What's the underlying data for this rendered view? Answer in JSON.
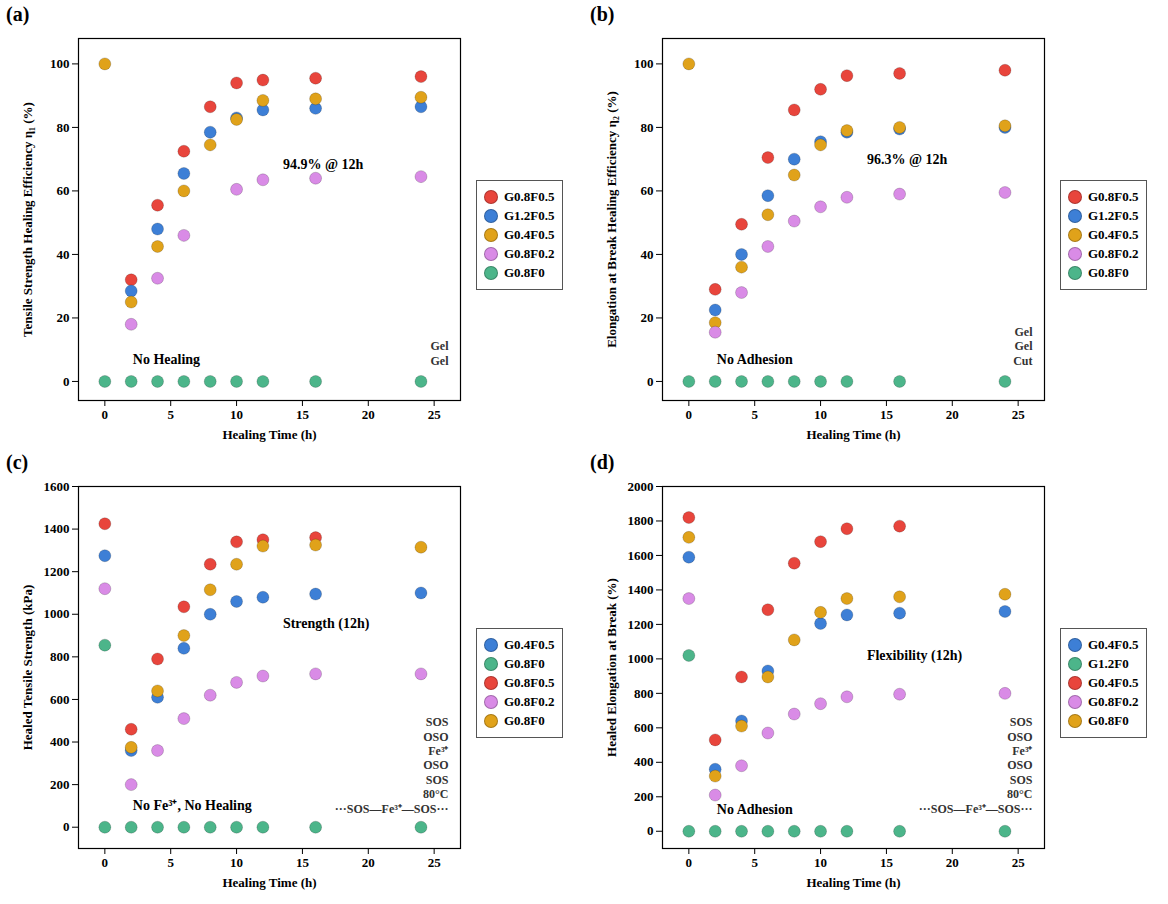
{
  "chart_data": [
    {
      "type": "scatter",
      "panel": "(a)",
      "x_label": "Healing Time (h)",
      "y_label": "Tensile Strength Healing Efficiency η₁ (%)",
      "x": [
        0,
        2,
        4,
        6,
        8,
        10,
        12,
        16,
        24
      ],
      "xlim": [
        -2,
        27
      ],
      "xticks": [
        0,
        5,
        10,
        15,
        20,
        25
      ],
      "ylim": [
        -6,
        108
      ],
      "yticks": [
        0,
        20,
        40,
        60,
        80,
        100
      ],
      "legend": "right",
      "series": [
        {
          "name": "G0.8F0.5",
          "color": "#e8453c",
          "values": [
            null,
            32,
            55.5,
            72.5,
            86.5,
            94,
            94.9,
            95.5,
            96
          ]
        },
        {
          "name": "G1.2F0.5",
          "color": "#3d7fd6",
          "values": [
            null,
            28.5,
            48,
            65.5,
            78.5,
            83,
            85.5,
            86,
            86.5
          ]
        },
        {
          "name": "G0.4F0.5",
          "color": "#e0a21a",
          "values": [
            100,
            25,
            42.5,
            60,
            74.5,
            82.5,
            88.5,
            89,
            89.5
          ]
        },
        {
          "name": "G0.8F0.2",
          "color": "#d98be6",
          "values": [
            null,
            18,
            32.5,
            46,
            null,
            60.5,
            63.5,
            64,
            64.5
          ]
        },
        {
          "name": "G0.8F0",
          "color": "#4cb58a",
          "values": [
            0,
            0,
            0,
            0,
            0,
            0,
            0,
            0,
            0
          ]
        }
      ],
      "annotations": [
        {
          "text": "94.9% @ 12h",
          "x": 12,
          "y": 94.9
        },
        {
          "text": "No Healing",
          "x": 0,
          "y": 0
        }
      ],
      "inset_texts": [
        "Gel",
        "Gel"
      ]
    },
    {
      "type": "scatter",
      "panel": "(b)",
      "x_label": "Healing Time (h)",
      "y_label": "Elongation at Break Healing Efficiency η₂ (%)",
      "x": [
        0,
        2,
        4,
        6,
        8,
        10,
        12,
        16,
        24
      ],
      "xlim": [
        -2,
        27
      ],
      "xticks": [
        0,
        5,
        10,
        15,
        20,
        25
      ],
      "ylim": [
        -6,
        108
      ],
      "yticks": [
        0,
        20,
        40,
        60,
        80,
        100
      ],
      "legend": "right",
      "series": [
        {
          "name": "G0.8F0.5",
          "color": "#e8453c",
          "values": [
            null,
            29,
            49.5,
            70.5,
            85.5,
            92,
            96.3,
            97,
            98
          ]
        },
        {
          "name": "G1.2F0.5",
          "color": "#3d7fd6",
          "values": [
            null,
            22.5,
            40,
            58.5,
            70,
            75.5,
            78.5,
            79.5,
            80
          ]
        },
        {
          "name": "G0.4F0.5",
          "color": "#e0a21a",
          "values": [
            100,
            18.5,
            36,
            52.5,
            65,
            74.5,
            79,
            80,
            80.5
          ]
        },
        {
          "name": "G0.8F0.2",
          "color": "#d98be6",
          "values": [
            null,
            15.5,
            28,
            42.5,
            50.5,
            55,
            58,
            59,
            59.5
          ]
        },
        {
          "name": "G0.8F0",
          "color": "#4cb58a",
          "values": [
            0,
            0,
            0,
            0,
            0,
            0,
            0,
            0,
            0
          ]
        }
      ],
      "annotations": [
        {
          "text": "96.3% @ 12h",
          "x": 12,
          "y": 96.3
        },
        {
          "text": "No Adhesion",
          "x": 0,
          "y": 0
        }
      ],
      "inset_texts": [
        "Gel",
        "Gel",
        "Cut"
      ]
    },
    {
      "type": "scatter",
      "panel": "(c)",
      "x_label": "Healing Time (h)",
      "y_label": "Healed Tensile Strength (kPa)",
      "x": [
        0,
        2,
        4,
        6,
        8,
        10,
        12,
        16,
        24
      ],
      "xlim": [
        -2,
        27
      ],
      "xticks": [
        0,
        5,
        10,
        15,
        20,
        25
      ],
      "ylim": [
        -100,
        1600
      ],
      "yticks": [
        0,
        200,
        400,
        600,
        800,
        1000,
        1200,
        1400,
        1600
      ],
      "legend": "right",
      "series": [
        {
          "name": "G0.4F0.5",
          "color": "#3d7fd6",
          "values": [
            1275,
            360,
            610,
            840,
            1000,
            1060,
            1080,
            1095,
            1100
          ]
        },
        {
          "name": "G0.8F0",
          "color": "#4cb58a",
          "x": [
            0,
            0,
            2,
            4,
            6,
            8,
            10,
            12,
            16,
            24
          ],
          "values": [
            855,
            0,
            0,
            0,
            0,
            0,
            0,
            0,
            0,
            0
          ]
        },
        {
          "name": "G0.8F0.5",
          "color": "#e8453c",
          "values": [
            1425,
            460,
            790,
            1035,
            1235,
            1340,
            1350,
            1360,
            null
          ]
        },
        {
          "name": "G0.8F0.2",
          "color": "#d98be6",
          "values": [
            1120,
            200,
            360,
            510,
            620,
            680,
            710,
            720,
            720
          ]
        },
        {
          "name": "G0.8F0",
          "color": "#e0a21a",
          "values": [
            null,
            375,
            640,
            900,
            1115,
            1235,
            1320,
            1325,
            1315
          ]
        }
      ],
      "annotations": [
        {
          "text": "Strength (12h)",
          "x": 12,
          "y": 1350
        },
        {
          "text": "No Fe³⁺, No Healing",
          "x": 0,
          "y": 0
        }
      ],
      "inset_texts": [
        "SOS",
        "OSO",
        "Fe³⁺",
        "OSO",
        "SOS",
        "80°C",
        "···SOS—Fe³⁺—SOS···"
      ]
    },
    {
      "type": "scatter",
      "panel": "(d)",
      "x_label": "Healing Time (h)",
      "y_label": "Healed Elongation at Break (%)",
      "x": [
        0,
        2,
        4,
        6,
        8,
        10,
        12,
        16,
        24
      ],
      "xlim": [
        -2,
        27
      ],
      "xticks": [
        0,
        5,
        10,
        15,
        20,
        25
      ],
      "ylim": [
        -100,
        2000
      ],
      "yticks": [
        0,
        200,
        400,
        600,
        800,
        1000,
        1200,
        1400,
        1600,
        1800,
        2000
      ],
      "legend": "right",
      "series": [
        {
          "name": "G0.4F0.5",
          "color": "#3d7fd6",
          "values": [
            1590,
            360,
            640,
            930,
            null,
            1205,
            1255,
            1265,
            1275
          ]
        },
        {
          "name": "G1.2F0",
          "color": "#4cb58a",
          "x": [
            0,
            0,
            2,
            4,
            6,
            8,
            10,
            12,
            16,
            24
          ],
          "values": [
            1020,
            0,
            0,
            0,
            0,
            0,
            0,
            0,
            0,
            0
          ]
        },
        {
          "name": "G0.4F0.5",
          "color": "#e8453c",
          "values": [
            1820,
            530,
            895,
            1285,
            1555,
            1680,
            1755,
            1770,
            null
          ]
        },
        {
          "name": "G0.8F0.2",
          "color": "#d98be6",
          "values": [
            1350,
            210,
            380,
            570,
            680,
            740,
            780,
            795,
            800
          ]
        },
        {
          "name": "G0.8F0",
          "color": "#e0a21a",
          "values": [
            1705,
            320,
            610,
            895,
            1110,
            1270,
            1350,
            1360,
            1375
          ]
        }
      ],
      "annotations": [
        {
          "text": "Flexibility (12h)",
          "x": 12,
          "y": 1755
        },
        {
          "text": "No Adhesion",
          "x": 0,
          "y": 0
        }
      ],
      "inset_texts": [
        "SOS",
        "OSO",
        "Fe³⁺",
        "OSO",
        "SOS",
        "80°C",
        "···SOS—Fe³⁺—SOS···"
      ]
    }
  ]
}
